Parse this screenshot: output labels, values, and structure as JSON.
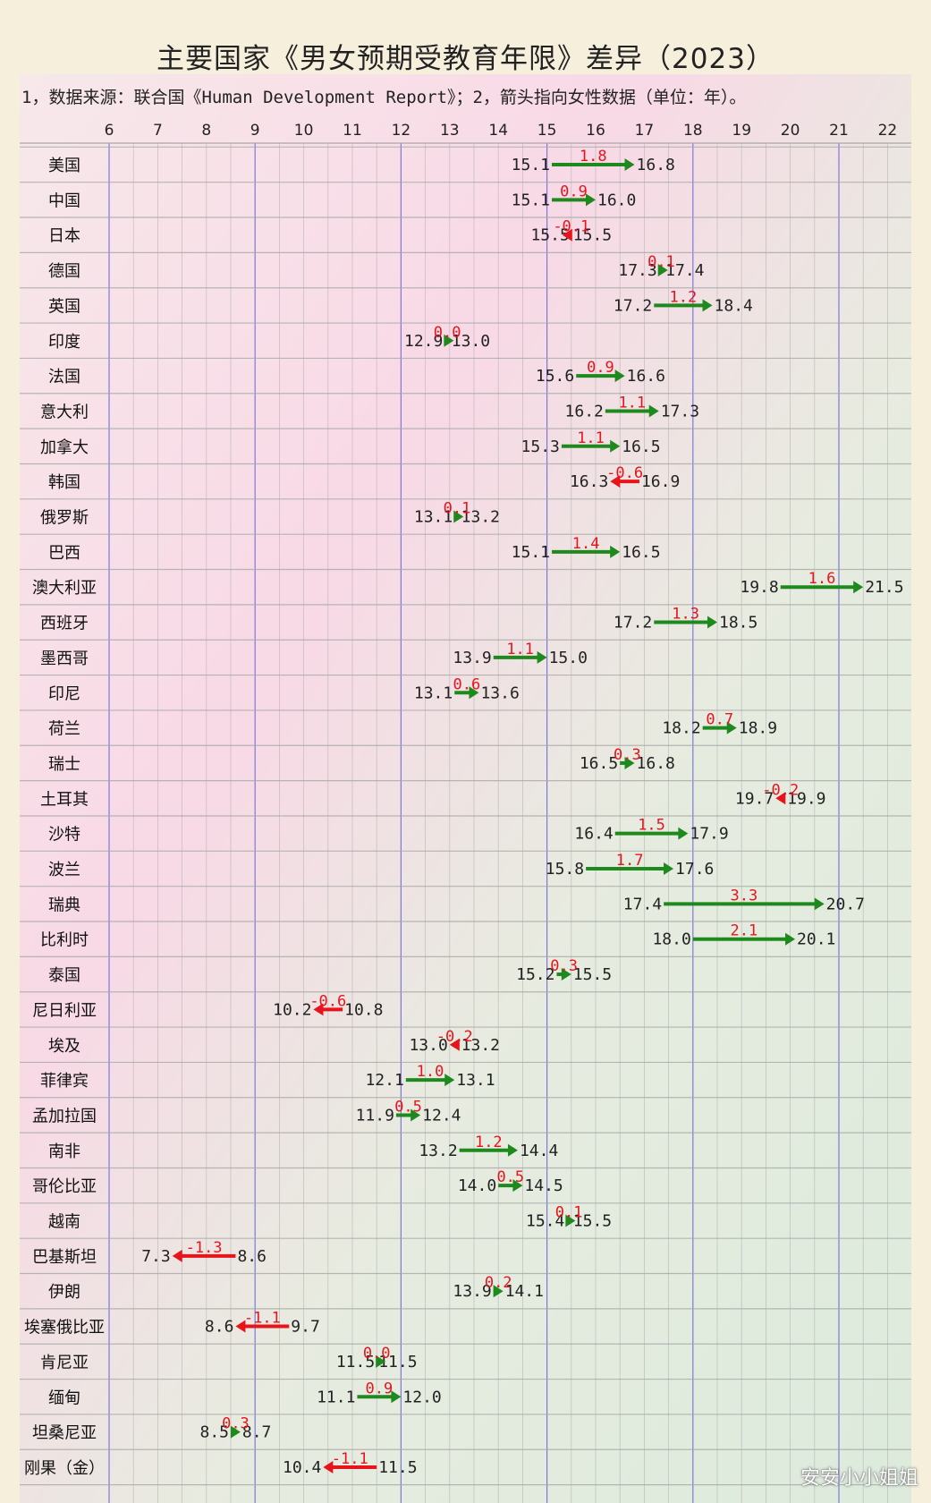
{
  "title": "主要国家《男女预期受教育年限》差异（2023）",
  "subtitle": "1，数据来源：联合国《Human Development Report》；2，箭头指向女性数据（单位：年）。",
  "watermark": "安安小小姐姐",
  "colors": {
    "up_arrow": "#1e8a1e",
    "down_arrow": "#e8141c",
    "diff_label": "#e8141c",
    "grid_minor": "#b0b0b0",
    "grid_major": "#6a66d8"
  },
  "chart_data": {
    "type": "dumbbell-arrow",
    "title": "主要国家《男女预期受教育年限》差异（2023）",
    "x_ticks": [
      6,
      7,
      8,
      9,
      10,
      11,
      12,
      13,
      14,
      15,
      16,
      17,
      18,
      19,
      20,
      21,
      22
    ],
    "xlim": [
      5.6,
      22.5
    ],
    "grid": true,
    "rows": [
      {
        "country": "美国",
        "from": "15.1",
        "to": "16.8",
        "diff": "1.8"
      },
      {
        "country": "中国",
        "from": "15.1",
        "to": "16.0",
        "diff": "0.9"
      },
      {
        "country": "日本",
        "from": "15.5",
        "to": "15.5",
        "diff": "-0.1"
      },
      {
        "country": "德国",
        "from": "17.3",
        "to": "17.4",
        "diff": "0.1"
      },
      {
        "country": "英国",
        "from": "17.2",
        "to": "18.4",
        "diff": "1.2"
      },
      {
        "country": "印度",
        "from": "12.9",
        "to": "13.0",
        "diff": "0.0"
      },
      {
        "country": "法国",
        "from": "15.6",
        "to": "16.6",
        "diff": "0.9"
      },
      {
        "country": "意大利",
        "from": "16.2",
        "to": "17.3",
        "diff": "1.1"
      },
      {
        "country": "加拿大",
        "from": "15.3",
        "to": "16.5",
        "diff": "1.1"
      },
      {
        "country": "韩国",
        "from": "16.3",
        "to": "16.9",
        "diff": "-0.6"
      },
      {
        "country": "俄罗斯",
        "from": "13.1",
        "to": "13.2",
        "diff": "0.1"
      },
      {
        "country": "巴西",
        "from": "15.1",
        "to": "16.5",
        "diff": "1.4"
      },
      {
        "country": "澳大利亚",
        "from": "19.8",
        "to": "21.5",
        "diff": "1.6"
      },
      {
        "country": "西班牙",
        "from": "17.2",
        "to": "18.5",
        "diff": "1.3"
      },
      {
        "country": "墨西哥",
        "from": "13.9",
        "to": "15.0",
        "diff": "1.1"
      },
      {
        "country": "印尼",
        "from": "13.1",
        "to": "13.6",
        "diff": "0.6"
      },
      {
        "country": "荷兰",
        "from": "18.2",
        "to": "18.9",
        "diff": "0.7"
      },
      {
        "country": "瑞士",
        "from": "16.5",
        "to": "16.8",
        "diff": "0.3"
      },
      {
        "country": "土耳其",
        "from": "19.7",
        "to": "19.9",
        "diff": "-0.2"
      },
      {
        "country": "沙特",
        "from": "16.4",
        "to": "17.9",
        "diff": "1.5"
      },
      {
        "country": "波兰",
        "from": "15.8",
        "to": "17.6",
        "diff": "1.7"
      },
      {
        "country": "瑞典",
        "from": "17.4",
        "to": "20.7",
        "diff": "3.3"
      },
      {
        "country": "比利时",
        "from": "18.0",
        "to": "20.1",
        "diff": "2.1"
      },
      {
        "country": "泰国",
        "from": "15.2",
        "to": "15.5",
        "diff": "0.3"
      },
      {
        "country": "尼日利亚",
        "from": "10.2",
        "to": "10.8",
        "diff": "-0.6"
      },
      {
        "country": "埃及",
        "from": "13.0",
        "to": "13.2",
        "diff": "-0.2"
      },
      {
        "country": "菲律宾",
        "from": "12.1",
        "to": "13.1",
        "diff": "1.0"
      },
      {
        "country": "孟加拉国",
        "from": "11.9",
        "to": "12.4",
        "diff": "0.5"
      },
      {
        "country": "南非",
        "from": "13.2",
        "to": "14.4",
        "diff": "1.2"
      },
      {
        "country": "哥伦比亚",
        "from": "14.0",
        "to": "14.5",
        "diff": "0.5"
      },
      {
        "country": "越南",
        "from": "15.4",
        "to": "15.5",
        "diff": "0.1"
      },
      {
        "country": "巴基斯坦",
        "from": "7.3",
        "to": "8.6",
        "diff": "-1.3"
      },
      {
        "country": "伊朗",
        "from": "13.9",
        "to": "14.1",
        "diff": "0.2"
      },
      {
        "country": "埃塞俄比亚",
        "from": "8.6",
        "to": "9.7",
        "diff": "-1.1"
      },
      {
        "country": "肯尼亚",
        "from": "11.5",
        "to": "11.5",
        "diff": "0.0"
      },
      {
        "country": "缅甸",
        "from": "11.1",
        "to": "12.0",
        "diff": "0.9"
      },
      {
        "country": "坦桑尼亚",
        "from": "8.5",
        "to": "8.7",
        "diff": "0.3"
      },
      {
        "country": "刚果（金）",
        "from": "10.4",
        "to": "11.5",
        "diff": "-1.1"
      }
    ]
  }
}
